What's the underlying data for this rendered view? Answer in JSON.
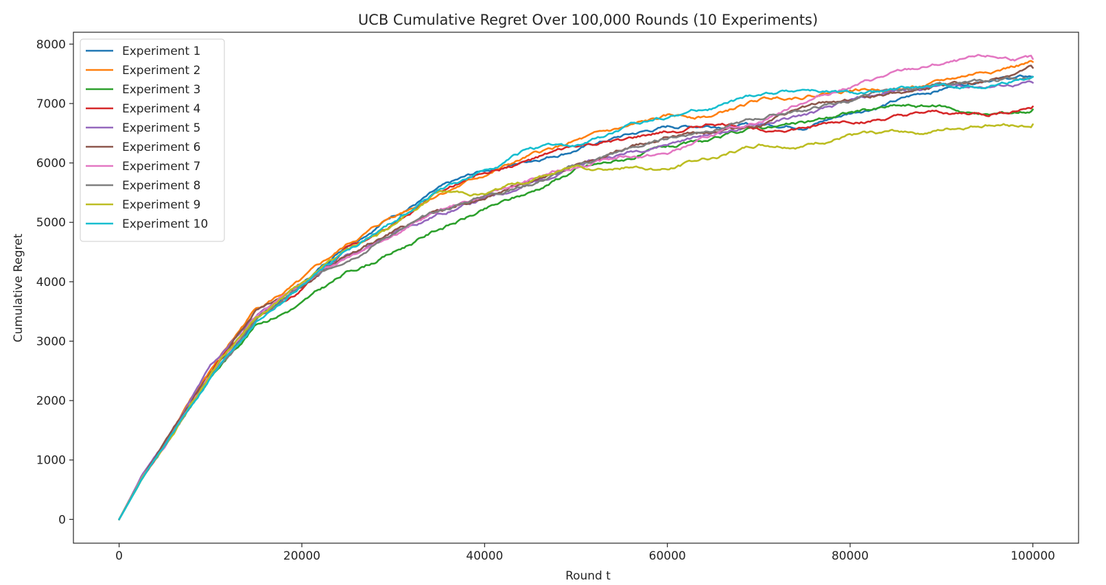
{
  "chart_data": {
    "type": "line",
    "title": "UCB Cumulative Regret Over 100,000 Rounds (10 Experiments)",
    "xlabel": "Round t",
    "ylabel": "Cumulative Regret",
    "xlim": [
      -5000,
      105000
    ],
    "ylim": [
      -400,
      8200
    ],
    "xticks": [
      0,
      20000,
      40000,
      60000,
      80000,
      100000
    ],
    "xtick_labels": [
      "0",
      "20000",
      "40000",
      "60000",
      "80000",
      "100000"
    ],
    "yticks": [
      0,
      1000,
      2000,
      3000,
      4000,
      5000,
      6000,
      7000,
      8000
    ],
    "ytick_labels": [
      "0",
      "1000",
      "2000",
      "3000",
      "4000",
      "5000",
      "6000",
      "7000",
      "8000"
    ],
    "grid": false,
    "legend_position": "top-left",
    "x": [
      0,
      2500,
      5000,
      10000,
      15000,
      20000,
      25000,
      30000,
      35000,
      40000,
      45000,
      50000,
      55000,
      60000,
      65000,
      70000,
      75000,
      80000,
      85000,
      90000,
      95000,
      100000
    ],
    "series": [
      {
        "name": "Experiment 1",
        "color": "#1f77b4",
        "values": [
          0,
          700,
          1250,
          2450,
          3350,
          3950,
          4650,
          5150,
          5550,
          5850,
          6050,
          6250,
          6450,
          6600,
          6650,
          6650,
          6650,
          6850,
          7050,
          7250,
          7450,
          7450
        ]
      },
      {
        "name": "Experiment 2",
        "color": "#ff7f0e",
        "values": [
          0,
          720,
          1300,
          2500,
          3550,
          4000,
          4600,
          5100,
          5500,
          5800,
          6100,
          6350,
          6550,
          6750,
          6800,
          7050,
          7150,
          7250,
          7250,
          7350,
          7550,
          7700
        ]
      },
      {
        "name": "Experiment 3",
        "color": "#2ca02c",
        "values": [
          0,
          680,
          1220,
          2400,
          3300,
          3650,
          4150,
          4500,
          4900,
          5200,
          5500,
          5900,
          6050,
          6250,
          6350,
          6600,
          6650,
          6850,
          6950,
          6950,
          6800,
          6900
        ]
      },
      {
        "name": "Experiment 4",
        "color": "#d62728",
        "values": [
          0,
          690,
          1260,
          2450,
          3400,
          3900,
          4600,
          5000,
          5500,
          5850,
          6050,
          6250,
          6350,
          6500,
          6650,
          6600,
          6600,
          6700,
          6750,
          6800,
          6800,
          6950
        ]
      },
      {
        "name": "Experiment 5",
        "color": "#9467bd",
        "values": [
          0,
          740,
          1300,
          2550,
          3450,
          3950,
          4450,
          4800,
          5150,
          5400,
          5650,
          5950,
          6150,
          6350,
          6500,
          6650,
          6800,
          7000,
          7200,
          7300,
          7300,
          7350
        ]
      },
      {
        "name": "Experiment 6",
        "color": "#8c564b",
        "values": [
          0,
          700,
          1270,
          2450,
          3550,
          3950,
          4450,
          4850,
          5200,
          5450,
          5700,
          5950,
          6200,
          6450,
          6550,
          6650,
          6900,
          7050,
          7200,
          7300,
          7350,
          7600
        ]
      },
      {
        "name": "Experiment 7",
        "color": "#e377c2",
        "values": [
          0,
          710,
          1250,
          2450,
          3400,
          3950,
          4450,
          4850,
          5200,
          5450,
          5700,
          5950,
          6100,
          6150,
          6450,
          6700,
          7050,
          7300,
          7500,
          7650,
          7750,
          7750
        ]
      },
      {
        "name": "Experiment 8",
        "color": "#7f7f7f",
        "values": [
          0,
          690,
          1240,
          2400,
          3350,
          3900,
          4400,
          4850,
          5150,
          5450,
          5650,
          5950,
          6200,
          6400,
          6600,
          6750,
          6900,
          7050,
          7200,
          7300,
          7350,
          7450
        ]
      },
      {
        "name": "Experiment 9",
        "color": "#bcbd22",
        "values": [
          0,
          700,
          1260,
          2450,
          3400,
          3950,
          4550,
          4950,
          5500,
          5500,
          5700,
          5950,
          5950,
          5900,
          6100,
          6300,
          6300,
          6450,
          6500,
          6550,
          6650,
          6650
        ]
      },
      {
        "name": "Experiment 10",
        "color": "#17becf",
        "values": [
          0,
          680,
          1230,
          2400,
          3350,
          3950,
          4550,
          5000,
          5550,
          5850,
          6250,
          6250,
          6550,
          6800,
          6950,
          7150,
          7250,
          7150,
          7200,
          7250,
          7300,
          7450
        ]
      }
    ]
  }
}
